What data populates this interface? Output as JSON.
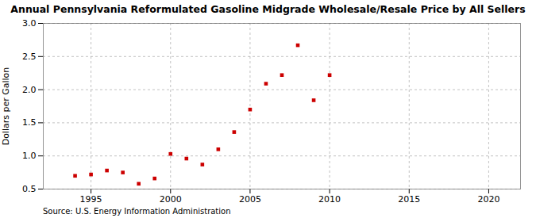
{
  "chart_data": {
    "type": "scatter",
    "title": "Annual Pennsylvania Reformulated Gasoline Midgrade Wholesale/Resale Price by All Sellers",
    "ylabel": "Dollars per Gallon",
    "source": "Source: U.S. Energy Information Administration",
    "x": [
      1994,
      1995,
      1996,
      1997,
      1998,
      1999,
      2000,
      2001,
      2002,
      2003,
      2004,
      2005,
      2006,
      2007,
      2008,
      2009,
      2010
    ],
    "values": [
      0.7,
      0.72,
      0.78,
      0.75,
      0.58,
      0.66,
      1.03,
      0.96,
      0.87,
      1.1,
      1.36,
      1.7,
      2.09,
      2.22,
      2.67,
      1.84,
      2.22
    ],
    "color": "#cc0000",
    "marker": "square",
    "xlim": [
      1992,
      2022
    ],
    "ylim": [
      0.5,
      3.0
    ],
    "xticks": [
      1995,
      2000,
      2005,
      2010,
      2015,
      2020
    ],
    "yticks": [
      0.5,
      {
        "value": 1.0,
        "label": "1.0"
      },
      1.5,
      {
        "value": 2.0,
        "label": "2.0"
      },
      2.5,
      {
        "value": 3.0,
        "label": "3.0"
      }
    ],
    "grid": true
  }
}
